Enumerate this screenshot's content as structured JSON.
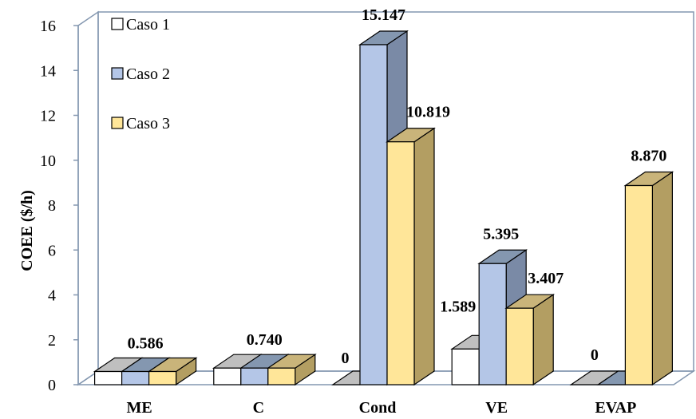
{
  "chart_data": {
    "type": "bar",
    "ylabel": "COEE ($/h)",
    "xlabel": "",
    "ylim": [
      0,
      16
    ],
    "yticks": [
      0,
      2,
      4,
      6,
      8,
      10,
      12,
      14,
      16
    ],
    "grid": false,
    "legend": "top-left",
    "categories": [
      "ME",
      "C",
      "Cond",
      "VE",
      "EVAP"
    ],
    "series": [
      {
        "name": "Caso 1",
        "values": [
          0.586,
          0.74,
          0,
          1.589,
          0
        ]
      },
      {
        "name": "Caso 2",
        "values": [
          0.586,
          0.74,
          15.147,
          5.395,
          0
        ]
      },
      {
        "name": "Caso 3",
        "values": [
          0.586,
          0.74,
          10.819,
          3.407,
          8.87
        ]
      }
    ],
    "data_labels": [
      {
        "category": "ME",
        "series": "Caso 2",
        "text": "0.586"
      },
      {
        "category": "C",
        "series": "Caso 2",
        "text": "0.740"
      },
      {
        "category": "Cond",
        "series": "Caso 1",
        "text": "0"
      },
      {
        "category": "Cond",
        "series": "Caso 2",
        "text": "15.147"
      },
      {
        "category": "Cond",
        "series": "Caso 3",
        "text": "10.819"
      },
      {
        "category": "VE",
        "series": "Caso 1",
        "text": "1.589"
      },
      {
        "category": "VE",
        "series": "Caso 2",
        "text": "5.395"
      },
      {
        "category": "VE",
        "series": "Caso 3",
        "text": "3.407"
      },
      {
        "category": "EVAP",
        "series": "Caso 1",
        "text": "0"
      },
      {
        "category": "EVAP",
        "series": "Caso 3",
        "text": "8.870"
      }
    ],
    "colors": {
      "Caso 1": {
        "front": "#ffffff",
        "top": "#bfbfbf",
        "side": "#a6a6a6"
      },
      "Caso 2": {
        "front": "#b4c6e7",
        "top": "#8497b0",
        "side": "#7a8aa6"
      },
      "Caso 3": {
        "front": "#ffe699",
        "top": "#c9b47a",
        "side": "#b39e62"
      },
      "wall": "#8497b0"
    }
  }
}
